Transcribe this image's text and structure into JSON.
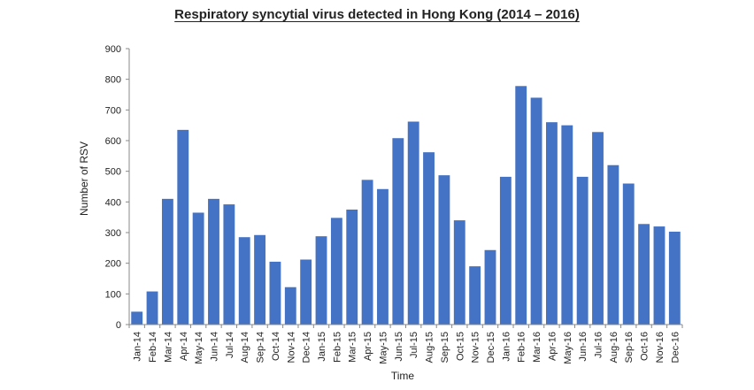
{
  "chart_data": {
    "type": "bar",
    "title": "Respiratory syncytial virus detected in Hong Kong (2014 – 2016)",
    "xlabel": "Time",
    "ylabel": "Number of RSV",
    "ylim": [
      0,
      900
    ],
    "yticks": [
      0,
      100,
      200,
      300,
      400,
      500,
      600,
      700,
      800,
      900
    ],
    "grid": false,
    "bar_color": "#4472C4",
    "categories": [
      "Jan-14",
      "Feb-14",
      "Mar-14",
      "Apr-14",
      "May-14",
      "Jun-14",
      "Jul-14",
      "Aug-14",
      "Sep-14",
      "Oct-14",
      "Nov-14",
      "Dec-14",
      "Jan-15",
      "Feb-15",
      "Mar-15",
      "Apr-15",
      "May-15",
      "Jun-15",
      "Jul-15",
      "Aug-15",
      "Sep-15",
      "Oct-15",
      "Nov-15",
      "Dec-15",
      "Jan-16",
      "Feb-16",
      "Mar-16",
      "Apr-16",
      "May-16",
      "Jun-16",
      "Jul-16",
      "Aug-16",
      "Sep-16",
      "Oct-16",
      "Nov-16",
      "Dec-16"
    ],
    "values": [
      42,
      108,
      410,
      635,
      365,
      410,
      392,
      285,
      292,
      205,
      122,
      212,
      288,
      348,
      375,
      472,
      442,
      608,
      662,
      562,
      487,
      340,
      190,
      243,
      482,
      778,
      740,
      660,
      650,
      482,
      628,
      520,
      460,
      328,
      320,
      303
    ]
  }
}
